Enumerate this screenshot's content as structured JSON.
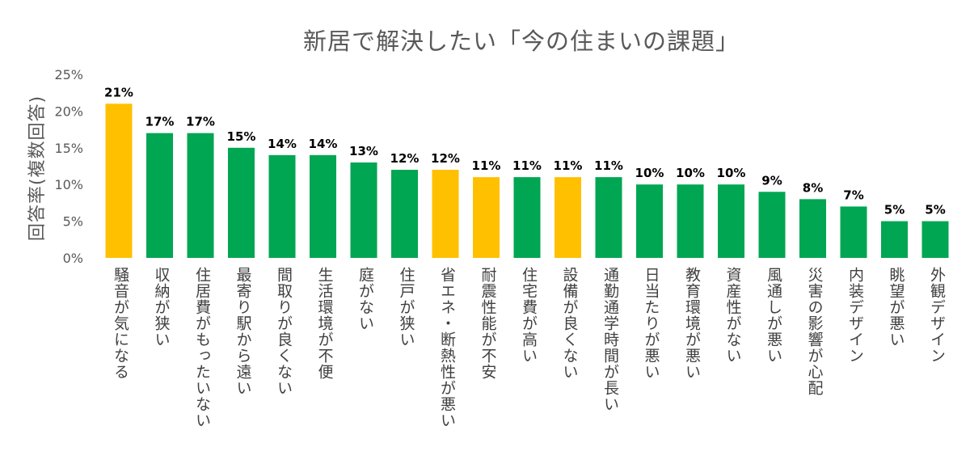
{
  "chart_data": {
    "type": "bar",
    "title": "新居で解決したい「今の住まいの課題」",
    "ylabel": "回答率(複数回答)",
    "xlabel": "",
    "ylim": [
      0,
      25
    ],
    "yticks": [
      0,
      5,
      10,
      15,
      20,
      25
    ],
    "ytick_labels": [
      "0%",
      "5%",
      "10%",
      "15%",
      "20%",
      "25%"
    ],
    "grid": false,
    "legend": "none",
    "categories": [
      "騒音が気になる",
      "収納が狭い",
      "住居費がもったいない",
      "最寄り駅から遠い",
      "間取りが良くない",
      "生活環境が不便",
      "庭がない",
      "住戸が狭い",
      "省エネ・断熱性が悪い",
      "耐震性能が不安",
      "住宅費が高い",
      "設備が良くない",
      "通勤通学時間が長い",
      "日当たりが悪い",
      "教育環境が悪い",
      "資産性がない",
      "風通しが悪い",
      "災害の影響が心配",
      "内装デザイン",
      "眺望が悪い",
      "外観デザイン"
    ],
    "values": [
      21,
      17,
      17,
      15,
      14,
      14,
      13,
      12,
      12,
      11,
      11,
      11,
      11,
      10,
      10,
      10,
      9,
      8,
      7,
      5,
      5
    ],
    "value_labels": [
      "21%",
      "17%",
      "17%",
      "15%",
      "14%",
      "14%",
      "13%",
      "12%",
      "12%",
      "11%",
      "11%",
      "11%",
      "11%",
      "10%",
      "10%",
      "10%",
      "9%",
      "8%",
      "7%",
      "5%",
      "5%"
    ],
    "highlighted": [
      true,
      false,
      false,
      false,
      false,
      false,
      false,
      false,
      true,
      true,
      false,
      true,
      false,
      false,
      false,
      false,
      false,
      false,
      false,
      false,
      false
    ],
    "colors": {
      "highlight": "#FFC000",
      "default": "#00A651"
    }
  }
}
